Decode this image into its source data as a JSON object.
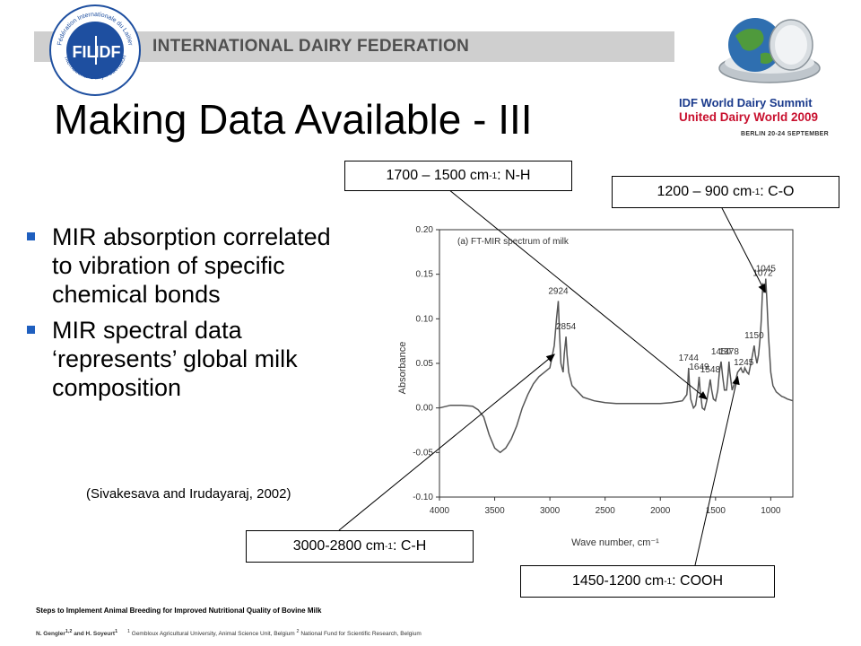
{
  "header": {
    "org_name": "INTERNATIONAL DAIRY FEDERATION",
    "logo_text_left": "FIL",
    "logo_text_right": "IDF",
    "logo_ring_top": "Fédération Internationale du Laitier",
    "logo_ring_bottom": "International Dairy Federation",
    "summit_line1": "IDF World Dairy Summit",
    "summit_line2": "United Dairy World 2009",
    "summit_line3": "BERLIN 20-24 SEPTEMBER"
  },
  "title": "Making Data Available - III",
  "bullets": [
    "MIR absorption correlated to vibration of specific chemical bonds",
    "MIR spectral data ‘represents’ global milk composition"
  ],
  "citation": "(Sivakesava and Irudayaraj, 2002)",
  "callouts": {
    "nh": {
      "range": "1700 – 1500 cm",
      "exp": "-1",
      "label": ": N-H"
    },
    "co": {
      "range": "1200 – 900 cm",
      "exp": "-1",
      "label": ": C-O"
    },
    "ch": {
      "range": "3000-2800 cm",
      "exp": "-1",
      "label": ": C-H"
    },
    "cooh": {
      "range": "1450-1200 cm",
      "exp": "-1",
      "label": ": COOH"
    }
  },
  "chart_data": {
    "type": "line",
    "title": "(a) FT-MIR spectrum of milk",
    "xlabel": "Wave number, cm⁻¹",
    "ylabel": "Absorbance",
    "xlim": [
      4000,
      800
    ],
    "ylim": [
      -0.1,
      0.2
    ],
    "x_ticks": [
      "4000",
      "3500",
      "3000",
      "2500",
      "2000",
      "1500",
      "1000"
    ],
    "y_ticks": [
      "0.20",
      "0.15",
      "0.10",
      "0.05",
      "0.00",
      "-0.05",
      "-0.10"
    ],
    "peak_labels": [
      "2924",
      "2854",
      "1744",
      "1649",
      "1548",
      "1450",
      "1378",
      "1245",
      "1150",
      "1072",
      "1045"
    ],
    "series": [
      {
        "x": [
          4000,
          3900,
          3800,
          3700,
          3650,
          3600,
          3550,
          3500,
          3450,
          3400,
          3350,
          3300,
          3250,
          3200,
          3150,
          3100,
          3050,
          3000,
          2960,
          2940,
          2924,
          2915,
          2900,
          2880,
          2870,
          2854,
          2845,
          2830,
          2800,
          2700,
          2600,
          2500,
          2400,
          2300,
          2200,
          2100,
          2000,
          1900,
          1800,
          1760,
          1750,
          1744,
          1738,
          1725,
          1700,
          1680,
          1660,
          1649,
          1640,
          1620,
          1600,
          1580,
          1560,
          1548,
          1535,
          1520,
          1500,
          1480,
          1465,
          1450,
          1435,
          1420,
          1400,
          1385,
          1378,
          1370,
          1350,
          1320,
          1300,
          1270,
          1255,
          1245,
          1235,
          1215,
          1200,
          1180,
          1165,
          1150,
          1140,
          1125,
          1110,
          1095,
          1085,
          1072,
          1062,
          1052,
          1045,
          1035,
          1020,
          1000,
          980,
          950,
          920,
          900,
          880,
          850,
          800
        ],
        "y": [
          0.0,
          0.003,
          0.003,
          0.002,
          -0.002,
          -0.01,
          -0.03,
          -0.045,
          -0.05,
          -0.045,
          -0.035,
          -0.02,
          0.0,
          0.015,
          0.027,
          0.035,
          0.04,
          0.045,
          0.07,
          0.1,
          0.12,
          0.09,
          0.05,
          0.04,
          0.06,
          0.08,
          0.06,
          0.04,
          0.025,
          0.012,
          0.008,
          0.006,
          0.005,
          0.005,
          0.005,
          0.005,
          0.005,
          0.006,
          0.008,
          0.015,
          0.03,
          0.045,
          0.03,
          0.01,
          0.0,
          0.003,
          0.02,
          0.035,
          0.02,
          0.0,
          -0.002,
          0.008,
          0.022,
          0.032,
          0.02,
          0.01,
          0.008,
          0.02,
          0.04,
          0.052,
          0.035,
          0.02,
          0.02,
          0.04,
          0.052,
          0.04,
          0.02,
          0.03,
          0.04,
          0.045,
          0.04,
          0.04,
          0.045,
          0.04,
          0.038,
          0.05,
          0.06,
          0.07,
          0.06,
          0.05,
          0.06,
          0.08,
          0.1,
          0.14,
          0.13,
          0.13,
          0.145,
          0.12,
          0.08,
          0.04,
          0.025,
          0.018,
          0.015,
          0.013,
          0.012,
          0.01,
          0.008
        ]
      }
    ]
  }
}
